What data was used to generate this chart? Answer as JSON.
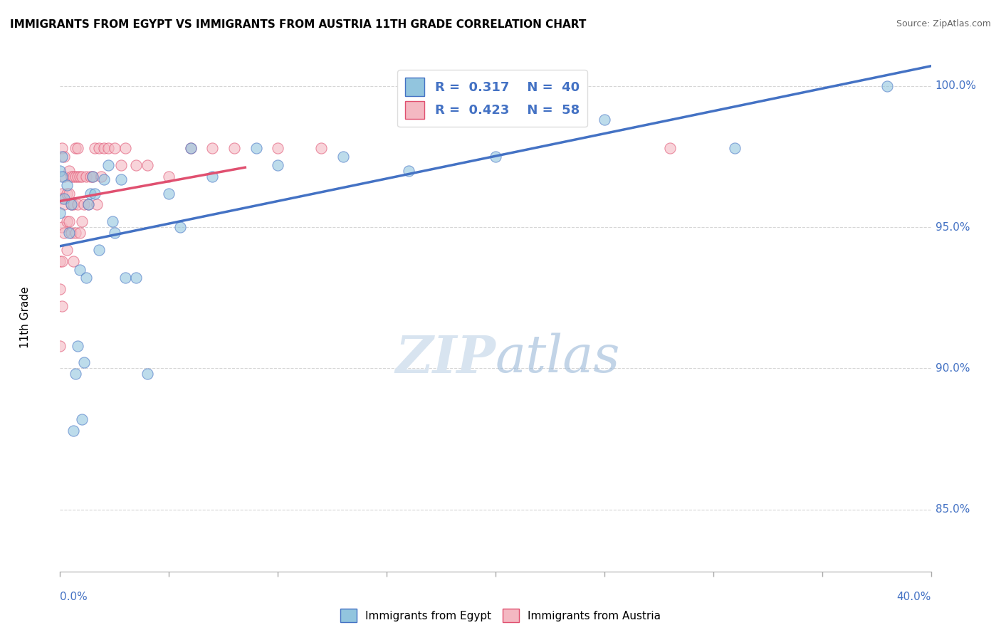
{
  "title": "IMMIGRANTS FROM EGYPT VS IMMIGRANTS FROM AUSTRIA 11TH GRADE CORRELATION CHART",
  "source": "Source: ZipAtlas.com",
  "ylabel": "11th Grade",
  "color_egypt": "#92C5DE",
  "color_austria": "#F4B8C2",
  "color_line_egypt": "#4472C4",
  "color_line_austria": "#E05070",
  "color_text_blue": "#4472C4",
  "color_grid": "#CCCCCC",
  "color_watermark": "#D8E4F0",
  "xmin": 0.0,
  "xmax": 0.4,
  "ymin": 0.828,
  "ymax": 1.008,
  "yticks": [
    0.85,
    0.9,
    0.95,
    1.0
  ],
  "ytick_labels": [
    "85.0%",
    "90.0%",
    "95.0%",
    "100.0%"
  ],
  "egypt_x": [
    0.0,
    0.0,
    0.001,
    0.001,
    0.002,
    0.003,
    0.004,
    0.005,
    0.006,
    0.007,
    0.008,
    0.009,
    0.01,
    0.011,
    0.012,
    0.013,
    0.014,
    0.015,
    0.016,
    0.018,
    0.02,
    0.022,
    0.024,
    0.025,
    0.028,
    0.03,
    0.035,
    0.04,
    0.05,
    0.055,
    0.06,
    0.07,
    0.09,
    0.1,
    0.13,
    0.16,
    0.2,
    0.25,
    0.31,
    0.38
  ],
  "egypt_y": [
    0.955,
    0.97,
    0.968,
    0.975,
    0.96,
    0.965,
    0.948,
    0.958,
    0.878,
    0.898,
    0.908,
    0.935,
    0.882,
    0.902,
    0.932,
    0.958,
    0.962,
    0.968,
    0.962,
    0.942,
    0.967,
    0.972,
    0.952,
    0.948,
    0.967,
    0.932,
    0.932,
    0.898,
    0.962,
    0.95,
    0.978,
    0.968,
    0.978,
    0.972,
    0.975,
    0.97,
    0.975,
    0.988,
    0.978,
    1.0
  ],
  "austria_x": [
    0.0,
    0.0,
    0.0,
    0.001,
    0.001,
    0.001,
    0.001,
    0.001,
    0.001,
    0.002,
    0.002,
    0.002,
    0.002,
    0.003,
    0.003,
    0.003,
    0.004,
    0.004,
    0.004,
    0.005,
    0.005,
    0.005,
    0.006,
    0.006,
    0.006,
    0.007,
    0.007,
    0.007,
    0.008,
    0.008,
    0.008,
    0.009,
    0.009,
    0.01,
    0.01,
    0.011,
    0.012,
    0.013,
    0.014,
    0.015,
    0.016,
    0.017,
    0.018,
    0.019,
    0.02,
    0.022,
    0.025,
    0.028,
    0.03,
    0.035,
    0.04,
    0.05,
    0.06,
    0.07,
    0.08,
    0.1,
    0.12,
    0.28
  ],
  "austria_y": [
    0.908,
    0.928,
    0.938,
    0.922,
    0.938,
    0.95,
    0.962,
    0.978,
    0.96,
    0.948,
    0.958,
    0.968,
    0.975,
    0.942,
    0.952,
    0.962,
    0.952,
    0.962,
    0.97,
    0.948,
    0.958,
    0.968,
    0.938,
    0.958,
    0.968,
    0.948,
    0.968,
    0.978,
    0.958,
    0.968,
    0.978,
    0.948,
    0.968,
    0.952,
    0.968,
    0.958,
    0.968,
    0.958,
    0.968,
    0.968,
    0.978,
    0.958,
    0.978,
    0.968,
    0.978,
    0.978,
    0.978,
    0.972,
    0.978,
    0.972,
    0.972,
    0.968,
    0.978,
    0.978,
    0.978,
    0.978,
    0.978,
    0.978
  ]
}
